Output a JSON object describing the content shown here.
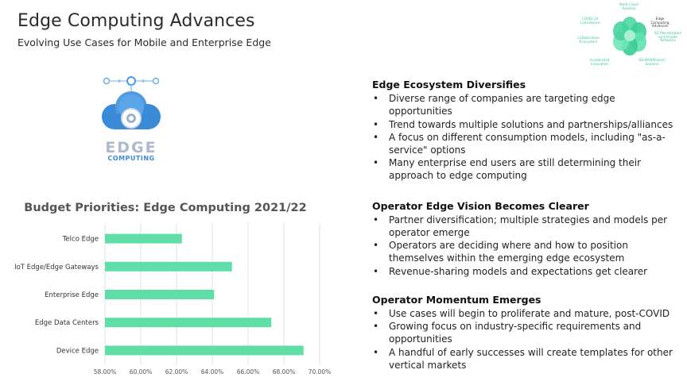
{
  "header": {
    "title": "Edge Computing Advances",
    "subtitle": "Evolving Use Cases for Mobile and Enterprise Edge"
  },
  "mini_diagram": {
    "center_label": "Edge Computing Advances",
    "labels": [
      "Multi-Cloud Solution",
      "COVID-19 Coexistence",
      "5G Monetization and Private Networks",
      "Collaborative Ecosystem",
      "SD-WAN/Branch Solution",
      "Accelerated Innovation"
    ]
  },
  "logo": {
    "word1": "EDGE",
    "word2": "COMPUTING",
    "icon": "cloud-computing-icon"
  },
  "chart_data": {
    "type": "bar",
    "orientation": "horizontal",
    "title": "Budget Priorities: Edge Computing 2021/22",
    "categories": [
      "Telco Edge",
      "IoT Edge/Edge Gateways",
      "Enterprise Edge",
      "Edge Data Centers",
      "Device Edge"
    ],
    "values": [
      62.3,
      65.1,
      64.1,
      67.3,
      69.1
    ],
    "xlim": [
      58,
      70
    ],
    "xticks": [
      "58.00%",
      "60.00%",
      "62.00%",
      "64.00%",
      "66.00%",
      "68.00%",
      "70.00%"
    ],
    "bar_color": "#5fdfa7",
    "grid": true
  },
  "sections": [
    {
      "heading": "Edge Ecosystem Diversifies",
      "bullets": [
        "Diverse range of companies are targeting edge opportunities",
        "Trend towards multiple solutions and partnerships/alliances",
        "A focus on different consumption models, including \"as-a-service\" options",
        "Many enterprise end users are still determining their approach to edge computing"
      ]
    },
    {
      "heading": "Operator Edge Vision Becomes Clearer",
      "bullets": [
        "Partner diversification; multiple strategies and models per operator emerge",
        "Operators are deciding where and how to position themselves within the emerging edge ecosystem",
        "Revenue-sharing models and expectations get clearer"
      ]
    },
    {
      "heading": "Operator Momentum Emerges",
      "bullets": [
        "Use cases will begin to proliferate and mature, post-COVID",
        "Growing focus on industry-specific requirements and opportunities",
        "A handful of early successes will create templates for other vertical markets"
      ]
    }
  ]
}
